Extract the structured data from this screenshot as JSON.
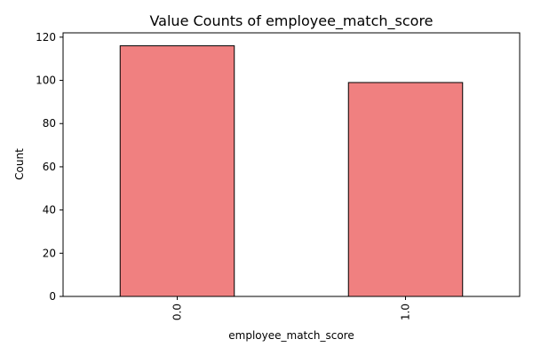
{
  "chart_data": {
    "type": "bar",
    "title": "Value Counts of employee_match_score",
    "xlabel": "employee_match_score",
    "ylabel": "Count",
    "categories": [
      "0.0",
      "1.0"
    ],
    "values": [
      116,
      99
    ],
    "ylim": [
      0,
      122
    ],
    "yticks": [
      0,
      20,
      40,
      60,
      80,
      100,
      120
    ],
    "bar_color": "#F08080",
    "edge_color": "#000000",
    "grid": false,
    "legend": false
  }
}
